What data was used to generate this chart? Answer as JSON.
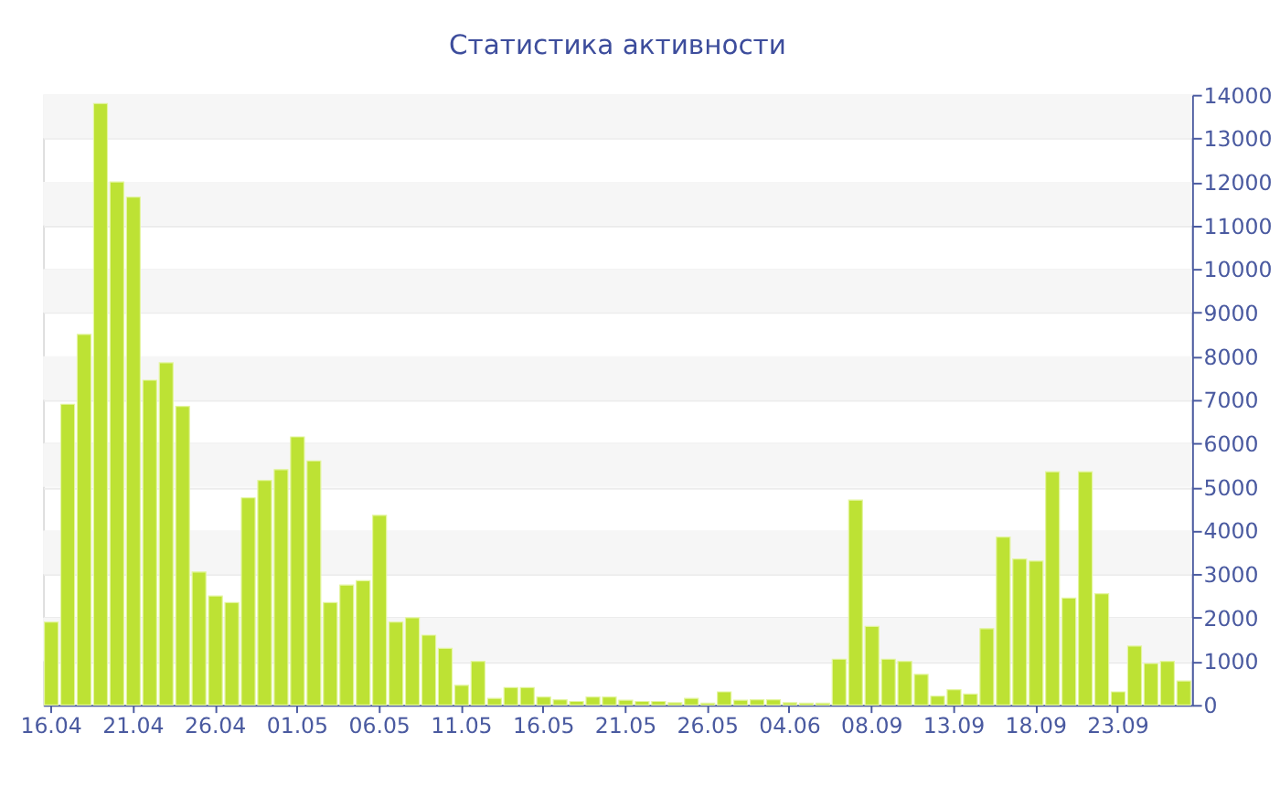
{
  "chart_data": {
    "type": "bar",
    "title": "Статистика активности",
    "categories": [
      "16.04",
      null,
      null,
      null,
      null,
      "21.04",
      null,
      null,
      null,
      null,
      "26.04",
      null,
      null,
      null,
      null,
      "01.05",
      null,
      null,
      null,
      null,
      "06.05",
      null,
      null,
      null,
      null,
      "11.05",
      null,
      null,
      null,
      null,
      "16.05",
      null,
      null,
      null,
      null,
      "21.05",
      null,
      null,
      null,
      null,
      "26.05",
      null,
      null,
      null,
      null,
      "04.06",
      null,
      null,
      null,
      null,
      "08.09",
      null,
      null,
      null,
      null,
      "13.09",
      null,
      null,
      null,
      null,
      "18.09",
      null,
      null,
      null,
      null,
      "23.09",
      null,
      null,
      null,
      null
    ],
    "values": [
      1900,
      6900,
      8500,
      13800,
      12000,
      11650,
      7450,
      7850,
      6850,
      3050,
      2500,
      2350,
      4750,
      5150,
      5400,
      6150,
      5600,
      2350,
      2750,
      2850,
      4350,
      1900,
      2000,
      1600,
      1300,
      450,
      1000,
      150,
      400,
      400,
      180,
      120,
      80,
      180,
      180,
      110,
      80,
      80,
      50,
      150,
      40,
      300,
      110,
      120,
      120,
      50,
      40,
      40,
      1050,
      4700,
      1800,
      1050,
      1000,
      700,
      200,
      350,
      250,
      1750,
      3850,
      3350,
      3300,
      5350,
      2450,
      5350,
      2550,
      300,
      1350,
      950,
      1000,
      550
    ],
    "color": "#bde234",
    "ylim": [
      0,
      14000
    ],
    "yticks": [
      0,
      1000,
      2000,
      3000,
      4000,
      5000,
      6000,
      7000,
      8000,
      9000,
      10000,
      11000,
      12000,
      13000,
      14000
    ],
    "grid": "y"
  }
}
